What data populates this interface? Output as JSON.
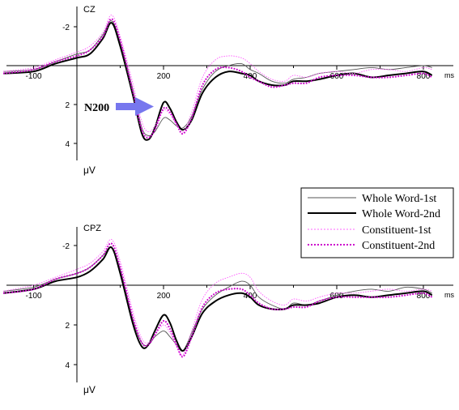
{
  "chart_data": [
    {
      "type": "line",
      "title": "CZ",
      "y_unit_label": "μV",
      "x_unit_label": "ms",
      "x_ticks": [
        -100,
        200,
        400,
        600,
        800
      ],
      "x_tick_labels": [
        "-100",
        "200",
        "400",
        "600",
        "800"
      ],
      "y_ticks": [
        -2,
        2,
        4
      ],
      "y_tick_labels": [
        "-2",
        "2",
        "4"
      ],
      "xlim": [
        -170,
        820
      ],
      "ylim": [
        -3.5,
        5
      ],
      "y_inverted": true,
      "annotation": {
        "text": "N200",
        "points_to_ms": 185
      },
      "series": [
        {
          "name": "Whole Word-1st",
          "x": [
            -170,
            -100,
            -50,
            0,
            30,
            60,
            80,
            100,
            130,
            150,
            165,
            180,
            200,
            215,
            230,
            245,
            265,
            290,
            320,
            350,
            380,
            400,
            420,
            450,
            480,
            500,
            530,
            560,
            600,
            640,
            680,
            720,
            760,
            800,
            820
          ],
          "y": [
            0.3,
            0.2,
            -0.2,
            -0.6,
            -0.8,
            -1.6,
            -2.3,
            -1.2,
            1.3,
            3.2,
            3.6,
            3.4,
            2.7,
            2.8,
            3.1,
            3.2,
            2.6,
            1.2,
            0.3,
            0.0,
            -0.1,
            0.2,
            0.4,
            0.8,
            0.9,
            0.7,
            0.6,
            0.4,
            0.3,
            0.2,
            0.1,
            0.2,
            0.1,
            0.0,
            0.1
          ]
        },
        {
          "name": "Whole Word-2nd",
          "x": [
            -170,
            -100,
            -50,
            0,
            30,
            60,
            80,
            100,
            130,
            150,
            165,
            180,
            200,
            215,
            230,
            245,
            265,
            290,
            320,
            350,
            380,
            400,
            420,
            450,
            480,
            500,
            530,
            560,
            600,
            640,
            680,
            720,
            760,
            800,
            820
          ],
          "y": [
            0.4,
            0.3,
            -0.1,
            -0.4,
            -0.6,
            -1.4,
            -2.2,
            -1.0,
            1.6,
            3.5,
            3.8,
            3.2,
            1.9,
            2.2,
            2.9,
            3.3,
            2.8,
            1.4,
            0.6,
            0.3,
            0.4,
            0.5,
            0.8,
            1.0,
            1.0,
            0.8,
            0.8,
            0.7,
            0.5,
            0.4,
            0.6,
            0.5,
            0.4,
            0.3,
            0.5
          ]
        },
        {
          "name": "Constituent-1st",
          "x": [
            -170,
            -100,
            -50,
            0,
            30,
            60,
            80,
            100,
            130,
            150,
            165,
            180,
            200,
            215,
            230,
            245,
            265,
            290,
            320,
            350,
            380,
            400,
            420,
            450,
            480,
            500,
            530,
            560,
            600,
            640,
            680,
            720,
            760,
            800,
            820
          ],
          "y": [
            0.3,
            0.1,
            -0.3,
            -0.7,
            -1.0,
            -1.7,
            -2.6,
            -1.5,
            1.0,
            2.9,
            3.4,
            3.1,
            2.3,
            2.5,
            3.0,
            3.4,
            2.4,
            0.6,
            -0.3,
            -0.5,
            -0.4,
            -0.1,
            0.3,
            0.7,
            0.8,
            0.5,
            0.6,
            0.4,
            0.3,
            0.4,
            0.2,
            0.2,
            0.3,
            0.1,
            0.2
          ]
        },
        {
          "name": "Constituent-2nd",
          "x": [
            -170,
            -100,
            -50,
            0,
            30,
            60,
            80,
            100,
            130,
            150,
            165,
            180,
            200,
            215,
            230,
            245,
            265,
            290,
            320,
            350,
            380,
            400,
            420,
            450,
            480,
            500,
            530,
            560,
            600,
            640,
            680,
            720,
            760,
            800,
            820
          ],
          "y": [
            0.4,
            0.2,
            -0.2,
            -0.5,
            -0.8,
            -1.5,
            -2.4,
            -1.3,
            1.4,
            3.3,
            3.7,
            3.3,
            2.2,
            2.4,
            3.0,
            3.5,
            2.7,
            1.0,
            0.2,
            0.1,
            0.3,
            0.6,
            0.8,
            1.1,
            1.0,
            0.9,
            0.9,
            0.6,
            0.5,
            0.5,
            0.6,
            0.6,
            0.5,
            0.4,
            0.6
          ]
        }
      ]
    },
    {
      "type": "line",
      "title": "CPZ",
      "y_unit_label": "μV",
      "x_unit_label": "ms",
      "x_ticks": [
        -100,
        200,
        400,
        600,
        800
      ],
      "x_tick_labels": [
        "-100",
        "200",
        "400",
        "600",
        "800"
      ],
      "y_ticks": [
        -2,
        2,
        4
      ],
      "y_tick_labels": [
        "-2",
        "2",
        "4"
      ],
      "xlim": [
        -170,
        820
      ],
      "ylim": [
        -3.5,
        5
      ],
      "y_inverted": true,
      "series": [
        {
          "name": "Whole Word-1st",
          "x": [
            -170,
            -100,
            -50,
            0,
            30,
            60,
            80,
            100,
            130,
            150,
            165,
            180,
            200,
            215,
            230,
            245,
            265,
            290,
            320,
            350,
            380,
            400,
            420,
            450,
            480,
            500,
            530,
            560,
            600,
            640,
            680,
            720,
            760,
            800,
            820
          ],
          "y": [
            0.3,
            0.1,
            -0.3,
            -0.6,
            -0.9,
            -1.5,
            -1.9,
            -0.8,
            1.8,
            2.9,
            3.0,
            2.6,
            2.3,
            2.6,
            3.0,
            3.3,
            2.4,
            1.2,
            0.5,
            0.1,
            -0.2,
            0.0,
            0.6,
            1.0,
            1.2,
            0.9,
            1.0,
            0.8,
            0.5,
            0.3,
            0.2,
            0.3,
            0.1,
            0.2,
            0.4
          ]
        },
        {
          "name": "Whole Word-2nd",
          "x": [
            -170,
            -100,
            -50,
            0,
            30,
            60,
            80,
            100,
            130,
            150,
            165,
            180,
            200,
            215,
            230,
            245,
            265,
            290,
            320,
            350,
            380,
            400,
            420,
            450,
            480,
            500,
            530,
            560,
            600,
            640,
            680,
            720,
            760,
            800,
            820
          ],
          "y": [
            0.4,
            0.2,
            -0.2,
            -0.4,
            -0.7,
            -1.3,
            -1.9,
            -0.6,
            2.0,
            3.1,
            3.0,
            2.3,
            1.5,
            1.9,
            2.8,
            3.3,
            2.6,
            1.4,
            0.8,
            0.5,
            0.4,
            0.6,
            1.0,
            1.2,
            1.2,
            1.0,
            1.0,
            0.9,
            0.6,
            0.5,
            0.6,
            0.5,
            0.4,
            0.3,
            0.5
          ]
        },
        {
          "name": "Constituent-1st",
          "x": [
            -170,
            -100,
            -50,
            0,
            30,
            60,
            80,
            100,
            130,
            150,
            165,
            180,
            200,
            215,
            230,
            245,
            265,
            290,
            320,
            350,
            380,
            400,
            420,
            450,
            480,
            500,
            530,
            560,
            600,
            640,
            680,
            720,
            760,
            800,
            820
          ],
          "y": [
            0.3,
            0.0,
            -0.4,
            -0.8,
            -1.1,
            -1.7,
            -2.3,
            -1.2,
            1.4,
            2.7,
            2.9,
            2.5,
            2.0,
            2.4,
            3.1,
            3.5,
            2.3,
            0.7,
            -0.1,
            -0.4,
            -0.6,
            -0.4,
            0.3,
            0.8,
            1.0,
            0.7,
            0.8,
            0.6,
            0.4,
            0.4,
            0.3,
            0.2,
            0.3,
            0.2,
            0.3
          ]
        },
        {
          "name": "Constituent-2nd",
          "x": [
            -170,
            -100,
            -50,
            0,
            30,
            60,
            80,
            100,
            130,
            150,
            165,
            180,
            200,
            215,
            230,
            245,
            265,
            290,
            320,
            350,
            380,
            400,
            420,
            450,
            480,
            500,
            530,
            560,
            600,
            640,
            680,
            720,
            760,
            800,
            820
          ],
          "y": [
            0.4,
            0.2,
            -0.3,
            -0.6,
            -0.9,
            -1.5,
            -2.1,
            -0.9,
            1.7,
            2.9,
            3.0,
            2.5,
            1.8,
            2.2,
            3.0,
            3.6,
            2.6,
            1.1,
            0.4,
            0.2,
            0.2,
            0.5,
            0.9,
            1.2,
            1.2,
            1.1,
            1.1,
            0.8,
            0.6,
            0.6,
            0.6,
            0.6,
            0.5,
            0.4,
            0.6
          ]
        }
      ]
    }
  ],
  "legend": {
    "position": "right, between panels",
    "entries": [
      {
        "label": "Whole Word-1st",
        "color": "#555555",
        "style": "solid-thin"
      },
      {
        "label": "Whole Word-2nd",
        "color": "#000000",
        "style": "solid-thick"
      },
      {
        "label": "Constituent-1st",
        "color": "#ff66ff",
        "style": "dotted-thin"
      },
      {
        "label": "Constituent-2nd",
        "color": "#cc00cc",
        "style": "dotted-thick"
      }
    ]
  },
  "colors": {
    "arrow": "#7777ee",
    "axis": "#000000"
  }
}
